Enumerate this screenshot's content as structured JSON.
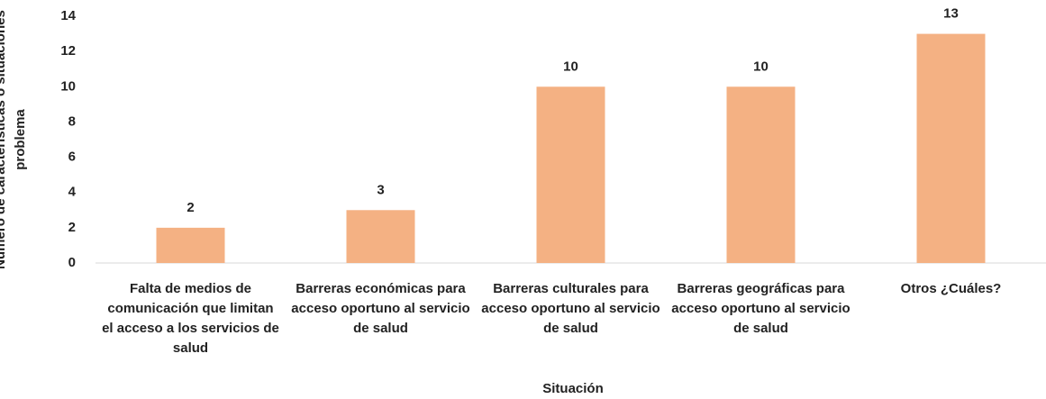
{
  "chart_data": {
    "type": "bar",
    "x_label": "Situación",
    "y_label": "Numero de características o situaciones problema",
    "categories": [
      "Falta de medios de comunicación que limitan el acceso a los servicios de salud",
      "Barreras económicas para acceso oportuno al servicio de salud",
      "Barreras culturales para acceso oportuno al servicio de salud",
      "Barreras geográficas para acceso oportuno al servicio de salud",
      "Otros ¿Cuáles?"
    ],
    "values": [
      2,
      3,
      10,
      10,
      13
    ],
    "color": "#f4b183",
    "ylim": [
      0,
      14
    ],
    "yticks": [
      0,
      2,
      4,
      6,
      8,
      10,
      12,
      14
    ],
    "grid": false
  }
}
